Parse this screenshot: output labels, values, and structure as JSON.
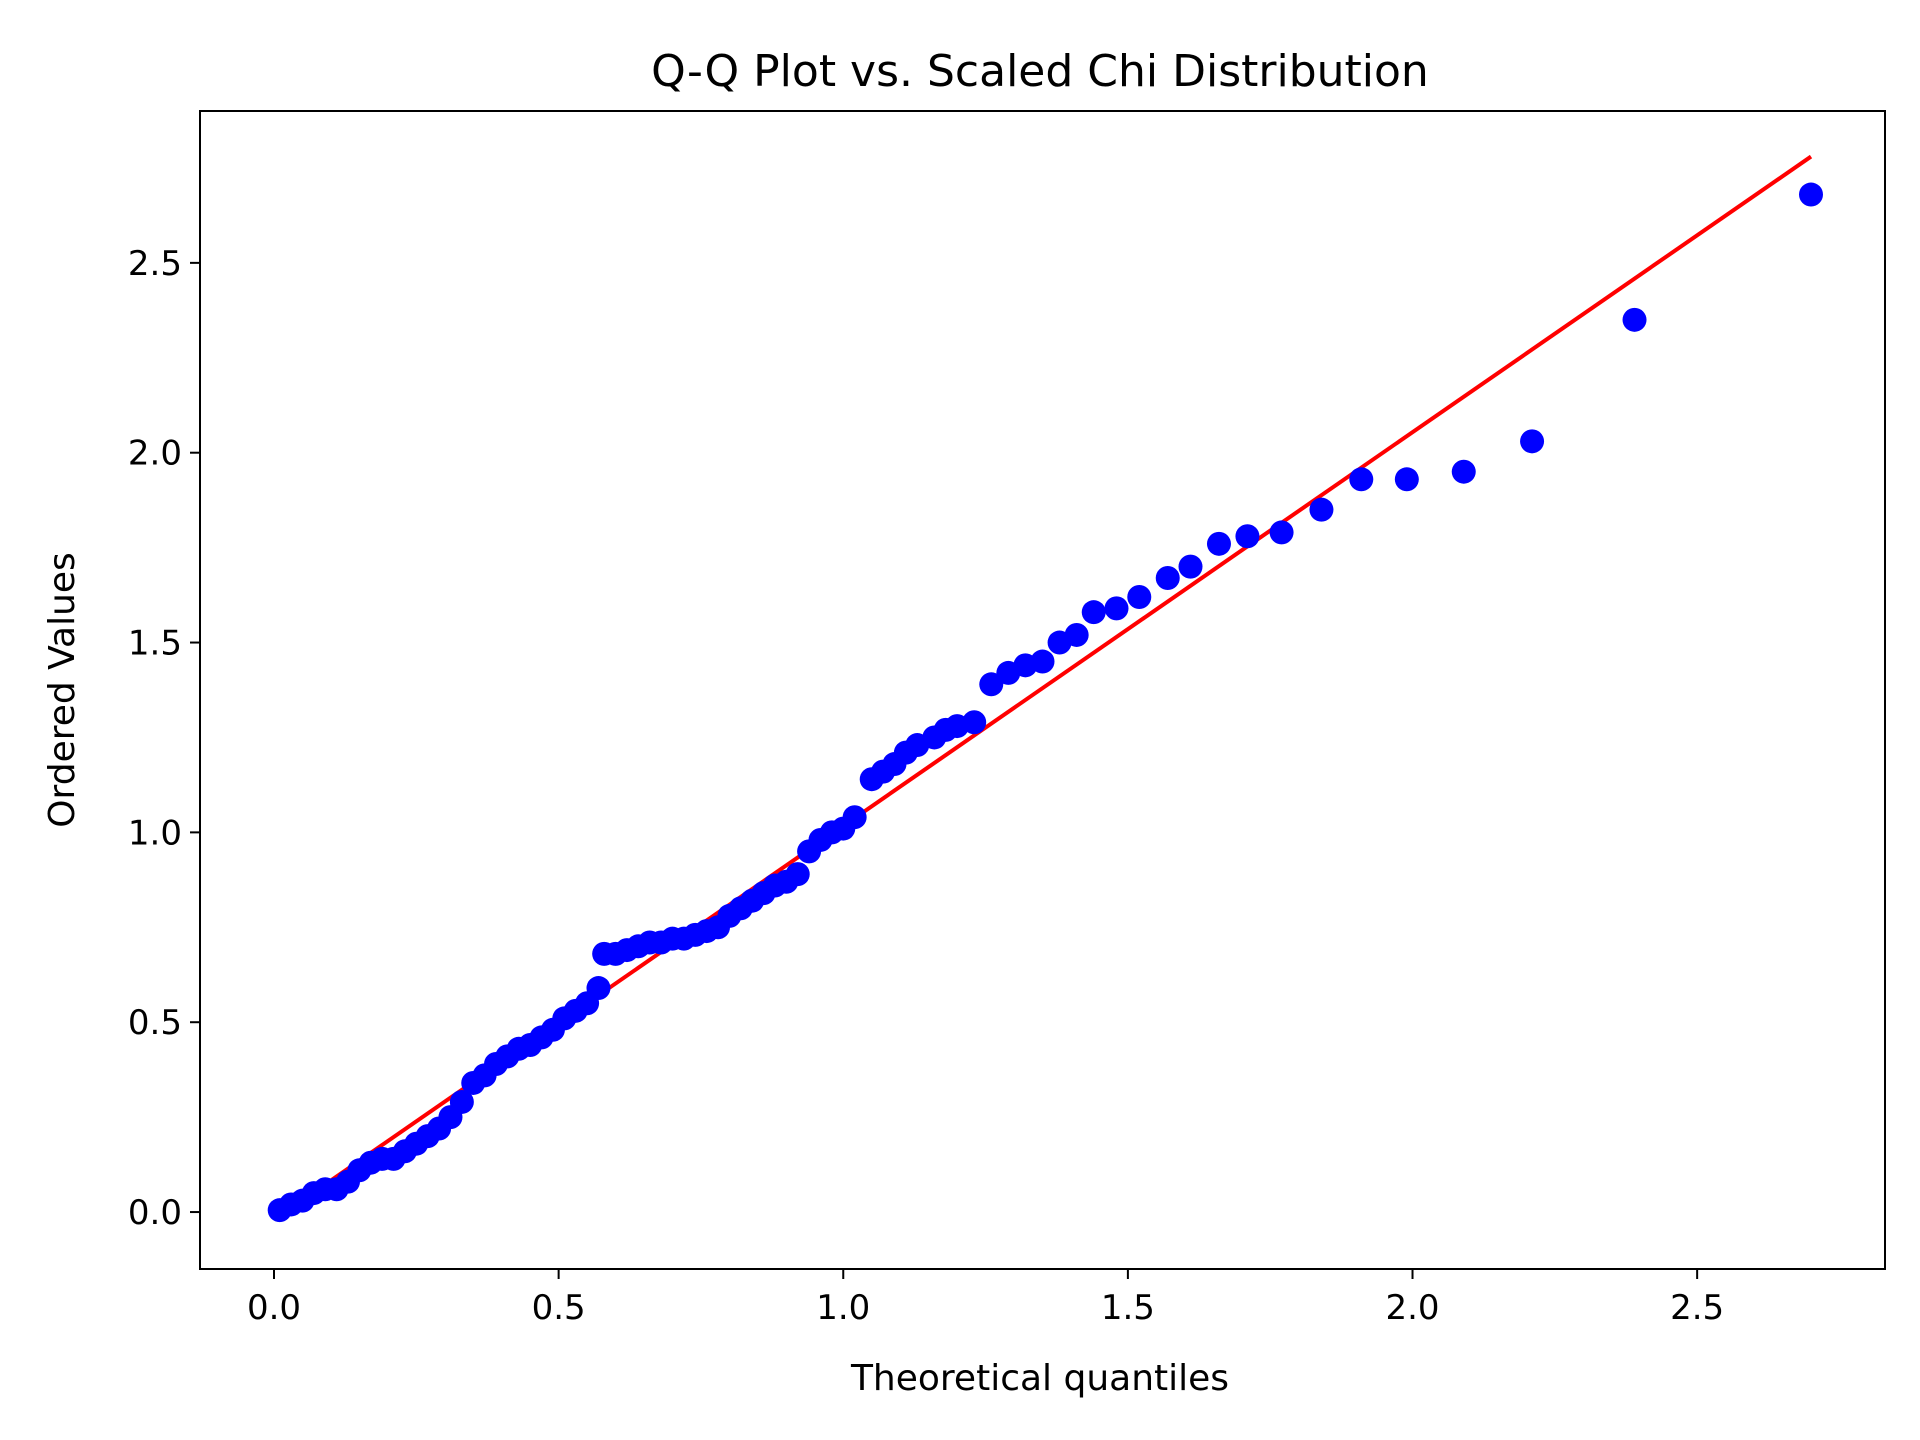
{
  "chart_data": {
    "type": "scatter",
    "title": "Q-Q Plot vs. Scaled Chi Distribution",
    "xlabel": "Theoretical quantiles",
    "ylabel": "Ordered Values",
    "xlim": [
      -0.13,
      2.83
    ],
    "ylim": [
      -0.15,
      2.9
    ],
    "grid": false,
    "xticks": [
      0.0,
      0.5,
      1.0,
      1.5,
      2.0,
      2.5
    ],
    "xtick_labels": [
      "0.0",
      "0.5",
      "1.0",
      "1.5",
      "2.0",
      "2.5"
    ],
    "yticks": [
      0.0,
      0.5,
      1.0,
      1.5,
      2.0,
      2.5
    ],
    "ytick_labels": [
      "0.0",
      "0.5",
      "1.0",
      "1.5",
      "2.0",
      "2.5"
    ],
    "series": [
      {
        "name": "Ordered Values",
        "kind": "scatter",
        "color": "#0000ff",
        "points": [
          [
            0.01,
            0.005
          ],
          [
            0.03,
            0.02
          ],
          [
            0.05,
            0.03
          ],
          [
            0.07,
            0.05
          ],
          [
            0.09,
            0.06
          ],
          [
            0.11,
            0.06
          ],
          [
            0.13,
            0.08
          ],
          [
            0.15,
            0.11
          ],
          [
            0.17,
            0.13
          ],
          [
            0.19,
            0.14
          ],
          [
            0.21,
            0.14
          ],
          [
            0.23,
            0.16
          ],
          [
            0.25,
            0.18
          ],
          [
            0.27,
            0.2
          ],
          [
            0.29,
            0.22
          ],
          [
            0.31,
            0.25
          ],
          [
            0.33,
            0.29
          ],
          [
            0.35,
            0.34
          ],
          [
            0.37,
            0.36
          ],
          [
            0.39,
            0.39
          ],
          [
            0.41,
            0.41
          ],
          [
            0.43,
            0.43
          ],
          [
            0.45,
            0.44
          ],
          [
            0.47,
            0.46
          ],
          [
            0.49,
            0.48
          ],
          [
            0.51,
            0.51
          ],
          [
            0.53,
            0.53
          ],
          [
            0.55,
            0.55
          ],
          [
            0.57,
            0.59
          ],
          [
            0.58,
            0.68
          ],
          [
            0.6,
            0.68
          ],
          [
            0.62,
            0.69
          ],
          [
            0.64,
            0.7
          ],
          [
            0.66,
            0.71
          ],
          [
            0.68,
            0.71
          ],
          [
            0.7,
            0.72
          ],
          [
            0.72,
            0.72
          ],
          [
            0.74,
            0.73
          ],
          [
            0.76,
            0.74
          ],
          [
            0.78,
            0.75
          ],
          [
            0.8,
            0.78
          ],
          [
            0.82,
            0.8
          ],
          [
            0.84,
            0.82
          ],
          [
            0.86,
            0.84
          ],
          [
            0.88,
            0.86
          ],
          [
            0.9,
            0.87
          ],
          [
            0.92,
            0.89
          ],
          [
            0.94,
            0.95
          ],
          [
            0.96,
            0.98
          ],
          [
            0.98,
            1.0
          ],
          [
            1.0,
            1.01
          ],
          [
            1.02,
            1.04
          ],
          [
            1.05,
            1.14
          ],
          [
            1.07,
            1.16
          ],
          [
            1.09,
            1.18
          ],
          [
            1.11,
            1.21
          ],
          [
            1.13,
            1.23
          ],
          [
            1.16,
            1.25
          ],
          [
            1.18,
            1.27
          ],
          [
            1.2,
            1.28
          ],
          [
            1.23,
            1.29
          ],
          [
            1.26,
            1.39
          ],
          [
            1.29,
            1.42
          ],
          [
            1.32,
            1.44
          ],
          [
            1.35,
            1.45
          ],
          [
            1.38,
            1.5
          ],
          [
            1.41,
            1.52
          ],
          [
            1.44,
            1.58
          ],
          [
            1.48,
            1.59
          ],
          [
            1.52,
            1.62
          ],
          [
            1.57,
            1.67
          ],
          [
            1.61,
            1.7
          ],
          [
            1.66,
            1.76
          ],
          [
            1.71,
            1.78
          ],
          [
            1.77,
            1.79
          ],
          [
            1.84,
            1.85
          ],
          [
            1.91,
            1.93
          ],
          [
            1.99,
            1.93
          ],
          [
            2.09,
            1.95
          ],
          [
            2.21,
            2.03
          ],
          [
            2.39,
            2.35
          ],
          [
            2.7,
            2.68
          ]
        ]
      },
      {
        "name": "Reference line",
        "kind": "line",
        "color": "#ff0000",
        "points": [
          [
            0.01,
            -0.01
          ],
          [
            2.7,
            2.78
          ]
        ]
      }
    ]
  }
}
